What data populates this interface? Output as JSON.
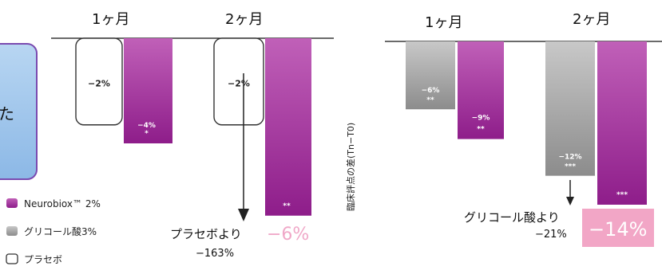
{
  "colors": {
    "neurobiox": "#8e1d8a",
    "neurobiox_light": "#c060b8",
    "glycolic": "#8c8c8c",
    "glycolic_light": "#c8c8c8",
    "placebo_stroke": "#333333",
    "pink": "#f0a8c8",
    "pink_box": "#f2a6c6",
    "side_box_fill": "#9cc4ea",
    "side_box_stroke": "#7a4ab0"
  },
  "side_box_text": "た",
  "legend": [
    {
      "label": "Neurobiox™ 2%",
      "style": "neurobiox"
    },
    {
      "label": "グリコール酸3%",
      "style": "glycolic"
    },
    {
      "label": "プラセボ",
      "style": "placebo"
    }
  ],
  "left_note": {
    "line1": "プラセボより",
    "line2": "−163%"
  },
  "left_big": "−6%",
  "y_axis_label": "臨床評点の差(Tn−T0)",
  "right_note": {
    "line1": "グリコール酸より",
    "line2": "−21%"
  },
  "right_big": "−14%",
  "chart_data": [
    {
      "type": "bar",
      "categories": [
        "1ヶ月",
        "2ヶ月"
      ],
      "series": [
        {
          "name": "プラセボ",
          "values": [
            -2,
            -2
          ],
          "labels": [
            "−2%",
            "−2%"
          ],
          "marks": [
            "",
            ""
          ]
        },
        {
          "name": "Neurobiox™ 2%",
          "values": [
            -4,
            -6
          ],
          "labels": [
            "−4%",
            ""
          ],
          "marks": [
            "*",
            "**"
          ]
        }
      ]
    },
    {
      "type": "bar",
      "categories": [
        "1ヶ月",
        "2ヶ月"
      ],
      "series": [
        {
          "name": "グリコール酸3%",
          "values": [
            -6,
            -12
          ],
          "labels": [
            "−6%",
            "−12%"
          ],
          "marks": [
            "**",
            "***"
          ]
        },
        {
          "name": "Neurobiox™ 2%",
          "values": [
            -9,
            -14
          ],
          "labels": [
            "−9%",
            ""
          ],
          "marks": [
            "**",
            "***"
          ]
        }
      ]
    }
  ]
}
